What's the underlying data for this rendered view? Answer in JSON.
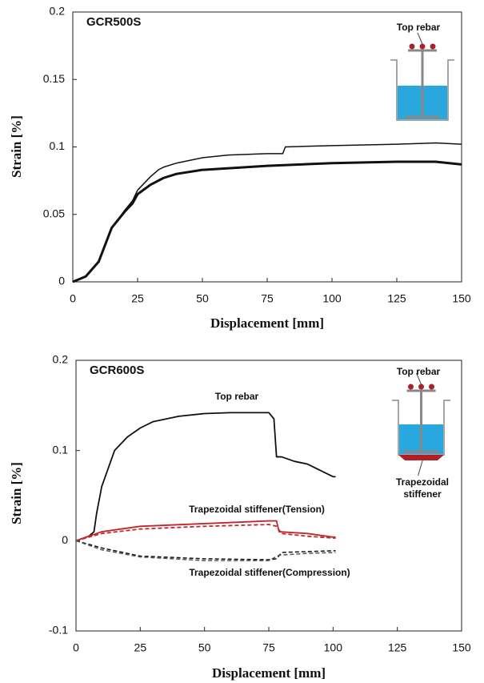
{
  "chart_data": [
    {
      "type": "line",
      "title": "GCR500S",
      "xlabel": "Displacement [mm]",
      "ylabel": "Strain [%]",
      "xlim": [
        0,
        150
      ],
      "xticks": [
        0,
        25,
        50,
        75,
        100,
        125,
        150
      ],
      "ylim": [
        0,
        0.2
      ],
      "yticks": [
        0,
        0.05,
        0.1,
        0.15,
        0.2
      ],
      "inset_labels": [
        "Top rebar"
      ],
      "series": [
        {
          "color": "#111111",
          "dash": false,
          "width": 1.5,
          "x": [
            0,
            5,
            10,
            13,
            15,
            20,
            23,
            25,
            30,
            33,
            35,
            40,
            50,
            60,
            75,
            81,
            82,
            100,
            125,
            140,
            150
          ],
          "values": [
            0,
            0.004,
            0.015,
            0.03,
            0.04,
            0.053,
            0.06,
            0.068,
            0.078,
            0.083,
            0.085,
            0.088,
            0.092,
            0.094,
            0.095,
            0.095,
            0.1,
            0.101,
            0.102,
            0.103,
            0.102
          ]
        },
        {
          "color": "#111111",
          "dash": false,
          "width": 3,
          "x": [
            0,
            5,
            10,
            15,
            20,
            23,
            25,
            30,
            35,
            40,
            50,
            75,
            100,
            125,
            140,
            150
          ],
          "values": [
            0,
            0.004,
            0.015,
            0.04,
            0.052,
            0.058,
            0.065,
            0.072,
            0.077,
            0.08,
            0.083,
            0.086,
            0.088,
            0.089,
            0.089,
            0.087
          ]
        }
      ]
    },
    {
      "type": "line",
      "title": "GCR600S",
      "xlabel": "Displacement [mm]",
      "ylabel": "Strain [%]",
      "xlim": [
        0,
        150
      ],
      "xticks": [
        0,
        25,
        50,
        75,
        100,
        125,
        150
      ],
      "ylim": [
        -0.1,
        0.2
      ],
      "yticks": [
        -0.1,
        0,
        0.1,
        0.2
      ],
      "annotations": [
        "Top rebar",
        "Trapezoidal stiffener(Tension)",
        "Trapezoidal stiffener(Compression)"
      ],
      "inset_labels": [
        "Top rebar",
        "Trapezoidal",
        "stiffener"
      ],
      "series": [
        {
          "color": "#111111",
          "dash": false,
          "width": 1.8,
          "x": [
            0,
            5,
            7,
            8,
            10,
            15,
            20,
            25,
            30,
            40,
            50,
            60,
            75,
            77,
            78,
            80,
            85,
            90,
            95,
            100,
            101
          ],
          "values": [
            0,
            0.005,
            0.01,
            0.03,
            0.06,
            0.1,
            0.115,
            0.125,
            0.132,
            0.138,
            0.141,
            0.142,
            0.142,
            0.135,
            0.093,
            0.093,
            0.088,
            0.085,
            0.078,
            0.071,
            0.071
          ]
        },
        {
          "color": "#c0282d",
          "dash": false,
          "width": 1.8,
          "x": [
            0,
            10,
            25,
            50,
            75,
            78,
            79,
            90,
            100,
            101
          ],
          "values": [
            0,
            0.01,
            0.016,
            0.019,
            0.022,
            0.022,
            0.01,
            0.008,
            0.004,
            0.004
          ]
        },
        {
          "color": "#c0282d",
          "dash": true,
          "width": 1.8,
          "x": [
            0,
            10,
            25,
            50,
            75,
            78,
            80,
            90,
            100,
            101
          ],
          "values": [
            0,
            0.008,
            0.013,
            0.016,
            0.018,
            0.016,
            0.008,
            0.005,
            0.003,
            0.003
          ]
        },
        {
          "color": "#111111",
          "dash": true,
          "width": 1.5,
          "x": [
            0,
            10,
            25,
            50,
            75,
            78,
            80,
            90,
            101
          ],
          "values": [
            0,
            -0.008,
            -0.017,
            -0.02,
            -0.021,
            -0.02,
            -0.013,
            -0.012,
            -0.011
          ]
        },
        {
          "color": "#555555",
          "dash": true,
          "width": 1.5,
          "x": [
            0,
            10,
            25,
            50,
            75,
            79,
            90,
            101
          ],
          "values": [
            0,
            -0.01,
            -0.018,
            -0.022,
            -0.022,
            -0.016,
            -0.014,
            -0.013
          ]
        }
      ]
    }
  ]
}
